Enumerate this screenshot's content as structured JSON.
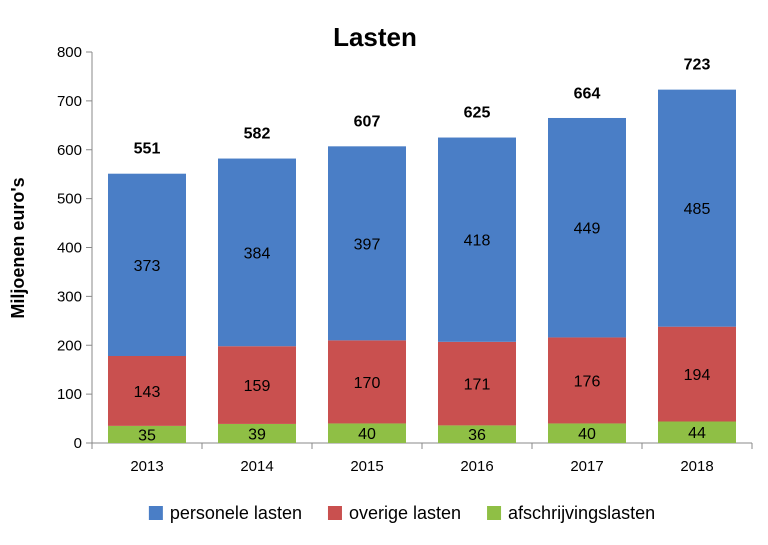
{
  "chart_data": {
    "type": "bar",
    "stacked": true,
    "title": "Lasten",
    "xlabel": "",
    "ylabel": "Miljoenen euro's",
    "ylim": [
      0,
      800
    ],
    "yticks": [
      0,
      100,
      200,
      300,
      400,
      500,
      600,
      700,
      800
    ],
    "categories": [
      "2013",
      "2014",
      "2015",
      "2016",
      "2017",
      "2018"
    ],
    "totals": [
      551,
      582,
      607,
      625,
      664,
      723
    ],
    "series": [
      {
        "name": "afschrijvingslasten",
        "color": "#8fbf45",
        "values": [
          35,
          39,
          40,
          36,
          40,
          44
        ]
      },
      {
        "name": "overige lasten",
        "color": "#c9504f",
        "values": [
          143,
          159,
          170,
          171,
          176,
          194
        ]
      },
      {
        "name": "personele lasten",
        "color": "#4a7ec6",
        "values": [
          373,
          384,
          397,
          418,
          449,
          485
        ]
      }
    ],
    "legend": {
      "position": "bottom",
      "order": [
        "personele lasten",
        "overige lasten",
        "afschrijvingslasten"
      ]
    },
    "grid": false
  }
}
